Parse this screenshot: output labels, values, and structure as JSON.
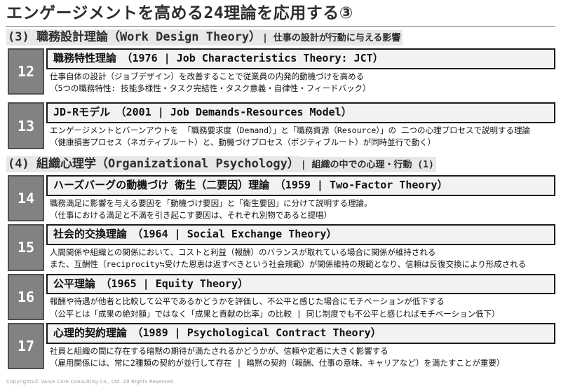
{
  "page_title": "エンゲージメントを高める24理論を応用する③",
  "colors": {
    "number_box_bg": "#828282",
    "number_box_border": "#4f4f4f",
    "title_bar_bg": "#f2f2f0",
    "title_bar_border": "#1c1c1c",
    "heading_highlight_bg": "#e8e8e6"
  },
  "sections": [
    {
      "heading": "(3) 職務設計理論（Work Design Theory）",
      "heading_note": "| 仕事の設計が行動に与える影響",
      "items": [
        {
          "number": "12",
          "title": "職務特性理論　（1976 | Job Characteristics Theory: JCT）",
          "desc1": "仕事自体の設計（ジョブデザイン）を改善することで従業員の内発的動機づけを高める",
          "desc2": "（5つの職務特性: 技能多様性・タスク完結性・タスク意義・自律性・フィードバック）"
        },
        {
          "number": "13",
          "title": "JD-Rモデル　（2001 | Job Demands-Resources Model）",
          "desc1": "エンゲージメントとバーンアウトを 「職務要求度（Demand）」と「職務資源（Resource）」の 二つの心理プロセスで説明する理論",
          "desc2": "（健康損害プロセス（ネガティブルート）と、動機づけプロセス（ポジティブルート）が同時並行で動く）"
        }
      ]
    },
    {
      "heading": "(4) 組織心理学（Organizational Psychology）",
      "heading_note": "| 組織の中での心理・行動 (1)",
      "items": [
        {
          "number": "14",
          "title": "ハーズバーグの動機づけ 衛生（二要因）理論　（1959 | Two-Factor Theory）",
          "desc1": "職務満足に影響を与える要因を「動機づけ要因」と「衛生要因」に分けて説明する理論。",
          "desc2": "（仕事における満足と不満を引き起こす要因は、それぞれ別物であると提唱）"
        },
        {
          "number": "15",
          "title": "社会的交換理論　（1964 | Social Exchange Theory）",
          "desc1": "人間関係や組織との関係において、コストと利益（報酬）のバランスが取れている場合に関係が維持される",
          "desc2": "また、互酬性（reciprocity≒受けた恩恵は返すべきという社会規範）が関係維持の規範となり、信頼は反復交換により形成される"
        },
        {
          "number": "16",
          "title": "公平理論　（1965 | Equity Theory）",
          "desc1": "報酬や待遇が他者と比較して公平であるかどうかを評価し、不公平と感じた場合にモチベーションが低下する",
          "desc2": "（公平とは「成果の絶対額」ではなく「成果と貢献の比率」の比較 | 同じ制度でも不公平と感じればモチベーション低下）"
        },
        {
          "number": "17",
          "title": "心理的契約理論　（1989 | Psychological Contract Theory）",
          "desc1": "社員と組織の間に存在する暗黙の期待が満たされるかどうかが、信頼や定着に大きく影響する",
          "desc2": "（雇用関係には、常に2種類の契約が並行して存在 | 暗黙の契約（報酬、仕事の意味、キャリアなど）を満たすことが重要）"
        }
      ]
    }
  ],
  "footer": "Copyrights© Value Core Consulting Co., Ltd.  All Rights Reserved."
}
